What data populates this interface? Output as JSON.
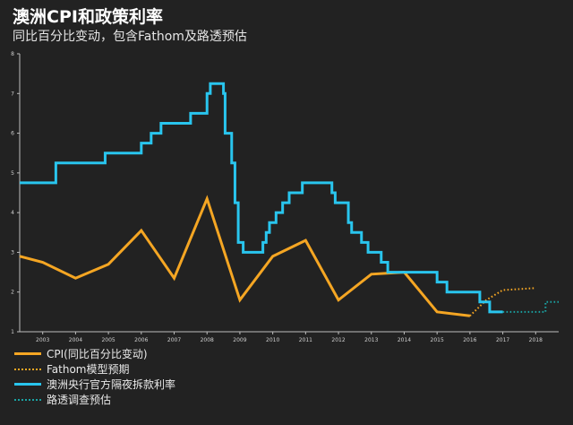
{
  "title": "澳洲CPI和政策利率",
  "subtitle": "同比百分比变动，包含Fathom及路透预估",
  "chart_data": {
    "type": "line",
    "xlim": [
      2002.3,
      2018.7
    ],
    "ylim": [
      1,
      8
    ],
    "y_ticks": [
      "1",
      "2",
      "3",
      "4",
      "5",
      "6",
      "7",
      "8"
    ],
    "x_ticks": [
      "2003",
      "2004",
      "2005",
      "2006",
      "2007",
      "2008",
      "2009",
      "2010",
      "2011",
      "2012",
      "2013",
      "2014",
      "2015",
      "2016",
      "2017",
      "2018"
    ],
    "x_tick_positions": [
      2003,
      2004,
      2005,
      2006,
      2007,
      2008,
      2009,
      2010,
      2011,
      2012,
      2013,
      2014,
      2015,
      2016,
      2017,
      2018
    ],
    "grid": false,
    "legend_position": "bottom-left",
    "series": [
      {
        "name": "CPI(同比百分比变动)",
        "color": "#f5a623",
        "style": "solid",
        "step": false,
        "points": [
          [
            2002.3,
            2.9
          ],
          [
            2003.0,
            2.75
          ],
          [
            2004.0,
            2.35
          ],
          [
            2005.0,
            2.7
          ],
          [
            2006.0,
            3.55
          ],
          [
            2007.0,
            2.35
          ],
          [
            2008.0,
            4.35
          ],
          [
            2009.0,
            1.8
          ],
          [
            2010.0,
            2.9
          ],
          [
            2011.0,
            3.3
          ],
          [
            2012.0,
            1.8
          ],
          [
            2013.0,
            2.45
          ],
          [
            2014.0,
            2.5
          ],
          [
            2015.0,
            1.5
          ],
          [
            2016.0,
            1.4
          ]
        ]
      },
      {
        "name": "Fathom模型预期",
        "color": "#f5a623",
        "style": "dotted",
        "step": false,
        "points": [
          [
            2016.0,
            1.4
          ],
          [
            2016.5,
            1.8
          ],
          [
            2017.0,
            2.05
          ],
          [
            2018.0,
            2.1
          ]
        ]
      },
      {
        "name": "澳洲央行官方隔夜拆款利率",
        "color": "#29c5ee",
        "style": "solid",
        "step": true,
        "points": [
          [
            2002.3,
            4.75
          ],
          [
            2003.4,
            5.25
          ],
          [
            2004.9,
            5.5
          ],
          [
            2006.0,
            5.75
          ],
          [
            2006.3,
            6.0
          ],
          [
            2006.6,
            6.25
          ],
          [
            2007.5,
            6.5
          ],
          [
            2008.0,
            7.0
          ],
          [
            2008.1,
            7.25
          ],
          [
            2008.5,
            7.0
          ],
          [
            2008.55,
            6.0
          ],
          [
            2008.75,
            5.25
          ],
          [
            2008.85,
            4.25
          ],
          [
            2008.95,
            3.25
          ],
          [
            2009.1,
            3.0
          ],
          [
            2009.7,
            3.25
          ],
          [
            2009.8,
            3.5
          ],
          [
            2009.9,
            3.75
          ],
          [
            2010.1,
            4.0
          ],
          [
            2010.3,
            4.25
          ],
          [
            2010.5,
            4.5
          ],
          [
            2010.9,
            4.75
          ],
          [
            2011.8,
            4.5
          ],
          [
            2011.9,
            4.25
          ],
          [
            2012.3,
            3.75
          ],
          [
            2012.4,
            3.5
          ],
          [
            2012.7,
            3.25
          ],
          [
            2012.9,
            3.0
          ],
          [
            2013.3,
            2.75
          ],
          [
            2013.5,
            2.5
          ],
          [
            2015.0,
            2.25
          ],
          [
            2015.3,
            2.0
          ],
          [
            2016.3,
            1.75
          ],
          [
            2016.6,
            1.5
          ],
          [
            2017.0,
            1.5
          ]
        ]
      },
      {
        "name": "路透调查预估",
        "color": "#1aa3a3",
        "style": "dotted",
        "step": true,
        "points": [
          [
            2017.0,
            1.5
          ],
          [
            2018.3,
            1.75
          ],
          [
            2018.7,
            1.75
          ]
        ]
      }
    ]
  }
}
